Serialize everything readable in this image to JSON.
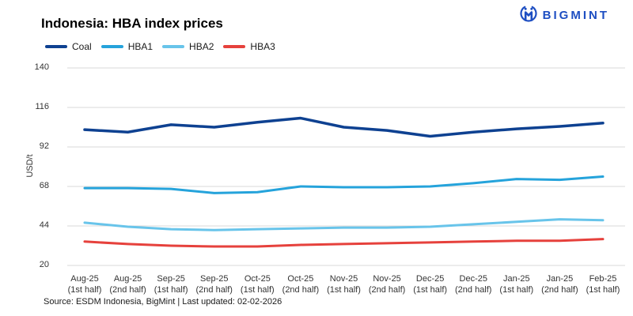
{
  "header": {
    "title": "Indonesia: HBA index prices",
    "brand": "BIGMINT"
  },
  "footer": {
    "source": "Source: ESDM Indonesia, BigMint | Last updated: 02-02-2026"
  },
  "colors": {
    "brand_blue": "#1d4ec2",
    "grid": "#d9d9d9",
    "axis_text": "#333333"
  },
  "chart_data": {
    "type": "line",
    "title": "Indonesia: HBA index prices",
    "xlabel": "",
    "ylabel": "USD/t",
    "ylim": [
      20,
      140
    ],
    "yticks": [
      20,
      44,
      68,
      92,
      116,
      140
    ],
    "grid": "horizontal",
    "legend_position": "top-left",
    "categories": [
      "Aug-25 (1st half)",
      "Aug-25 (2nd half)",
      "Sep-25 (1st half)",
      "Sep-25 (2nd half)",
      "Oct-25 (1st half)",
      "Oct-25 (2nd half)",
      "Nov-25 (1st half)",
      "Nov-25 (2nd half)",
      "Dec-25 (1st half)",
      "Dec-25 (2nd half)",
      "Jan-25 (1st half)",
      "Jan-25 (2nd half)",
      "Feb-25 (1st half)"
    ],
    "series": [
      {
        "name": "Coal",
        "color": "#0e4191",
        "values": [
          102.5,
          101,
          105.5,
          104,
          107,
          109.5,
          104,
          102,
          98.5,
          101,
          103,
          104.5,
          106.5
        ]
      },
      {
        "name": "HBA1",
        "color": "#25a3db",
        "values": [
          67,
          67,
          66.5,
          64,
          64.5,
          68,
          67.5,
          67.5,
          68,
          70,
          72.5,
          72,
          74
        ]
      },
      {
        "name": "HBA2",
        "color": "#68c4ea",
        "values": [
          46,
          43.5,
          42,
          41.5,
          42,
          42.5,
          43,
          43,
          43.5,
          45,
          46.5,
          48,
          47.5
        ]
      },
      {
        "name": "HBA3",
        "color": "#e6413c",
        "values": [
          34.5,
          33,
          32,
          31.5,
          31.5,
          32.5,
          33,
          33.5,
          34,
          34.5,
          35,
          35,
          36
        ]
      }
    ]
  }
}
